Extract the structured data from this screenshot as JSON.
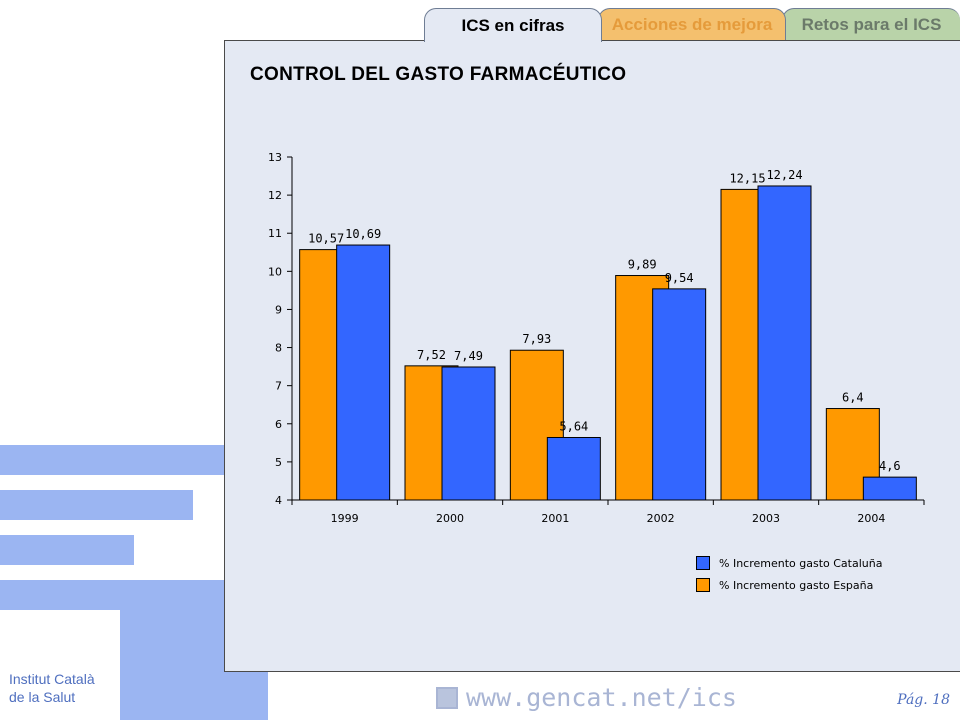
{
  "tabs": [
    {
      "label": "ICS en cifras",
      "active": true
    },
    {
      "label": "Acciones de mejora",
      "active": false
    },
    {
      "label": "Retos para el ICS",
      "active": false
    }
  ],
  "page_title": "CONTROL DEL GASTO FARMACÉUTICO",
  "chart_data": {
    "type": "bar",
    "categories": [
      "1999",
      "2000",
      "2001",
      "2002",
      "2003",
      "2004"
    ],
    "series": [
      {
        "name": "% Incremento gasto España",
        "color": "#ff9900",
        "values": [
          10.57,
          7.52,
          7.93,
          9.89,
          12.15,
          6.4
        ],
        "labels": [
          "10,57",
          "7,52",
          "7,93",
          "9,89",
          "12,15",
          "6,4"
        ]
      },
      {
        "name": "% Incremento gasto Cataluña",
        "color": "#3366ff",
        "values": [
          10.69,
          7.49,
          5.64,
          9.54,
          12.24,
          4.6
        ],
        "labels": [
          "10,69",
          "7,49",
          "5,64",
          "9,54",
          "12,24",
          "4,6"
        ]
      }
    ],
    "ylim": [
      4,
      13
    ],
    "yticks": [
      "4",
      "5",
      "6",
      "7",
      "8",
      "9",
      "10",
      "11",
      "12",
      "13"
    ],
    "legend": [
      {
        "label": "% Incremento gasto Cataluña",
        "color": "#3366ff"
      },
      {
        "label": "% Incremento gasto España",
        "color": "#ff9900"
      }
    ],
    "legend_position": "bottom-right",
    "grid": false
  },
  "footer": {
    "org_line1": "Institut Català",
    "org_line2": "de la Salut",
    "url": "www.gencat.net/ics",
    "page": "Pág. 18"
  }
}
